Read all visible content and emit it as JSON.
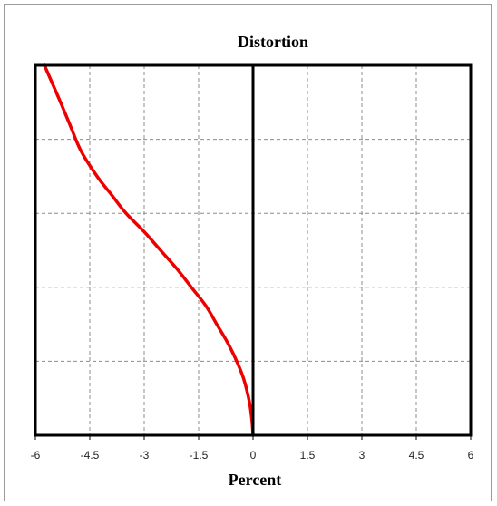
{
  "chart_data": {
    "type": "line",
    "title": "Distortion",
    "xlabel": "Percent",
    "ylabel": "",
    "xlim": [
      -6,
      6
    ],
    "ylim": [
      0,
      5
    ],
    "x_ticks": [
      "-6",
      "-4.5",
      "-3",
      "-1.5",
      "0",
      "1.5",
      "3",
      "4.5",
      "6"
    ],
    "grid": true,
    "series": [
      {
        "name": "",
        "color": "#ee0000",
        "x": [
          0,
          -0.03,
          -0.1,
          -0.25,
          -0.45,
          -0.7,
          -1.0,
          -1.3,
          -1.7,
          -2.1,
          -2.55,
          -3.0,
          -3.5,
          -3.9,
          -4.3,
          -4.75,
          -5.05,
          -5.35,
          -5.75
        ],
        "y": [
          0,
          0.2,
          0.45,
          0.75,
          1.0,
          1.25,
          1.5,
          1.75,
          2.0,
          2.25,
          2.5,
          2.75,
          3.0,
          3.25,
          3.5,
          3.85,
          4.2,
          4.55,
          5.0
        ]
      }
    ]
  },
  "colors": {
    "axis": "#000000",
    "grid": "#8c8c8c",
    "series": "#ee0000",
    "frame": "#9a9a9a"
  }
}
